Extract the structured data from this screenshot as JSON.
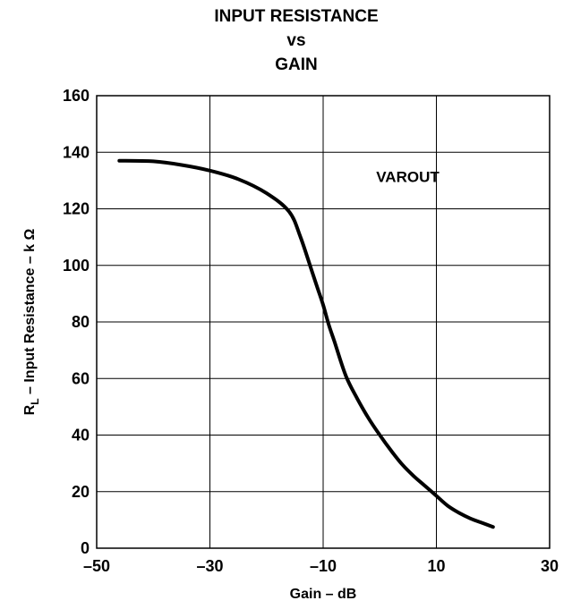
{
  "chart_data": {
    "type": "line",
    "title": [
      "INPUT RESISTANCE",
      "vs",
      "GAIN"
    ],
    "xlabel": "Gain – dB",
    "ylabel_main": "R",
    "ylabel_sub": "L",
    "ylabel_rest": " – Input Resistance – k Ω",
    "annotation": "VAROUT",
    "xlim": [
      -50,
      30
    ],
    "ylim": [
      0,
      160
    ],
    "xticks": [
      -50,
      -30,
      -10,
      10,
      30
    ],
    "xtick_labels": [
      "–50",
      "–30",
      "–10",
      "10",
      "30"
    ],
    "yticks": [
      0,
      20,
      40,
      60,
      80,
      100,
      120,
      140,
      160
    ],
    "ytick_labels": [
      "0",
      "20",
      "40",
      "60",
      "80",
      "100",
      "120",
      "140",
      "160"
    ],
    "grid": true,
    "series": [
      {
        "x": [
          -46,
          -40,
          -35,
          -30,
          -25,
          -20,
          -16,
          -14,
          -12,
          -11,
          -10,
          -9,
          -8,
          -6,
          -4,
          -2,
          0,
          2,
          4,
          6,
          8,
          10,
          12,
          14,
          16,
          18,
          20
        ],
        "y": [
          137,
          136.8,
          135.5,
          133.5,
          130.5,
          125.5,
          119,
          110,
          98,
          92,
          86,
          79,
          73,
          61,
          53,
          46,
          40,
          34.5,
          29.5,
          25.5,
          22,
          18.5,
          15,
          12.5,
          10.5,
          9,
          7.5
        ],
        "color": "#000000"
      }
    ]
  }
}
